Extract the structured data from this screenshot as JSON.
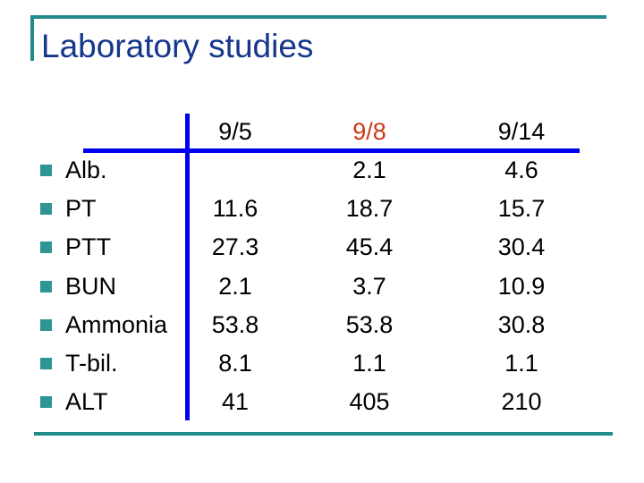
{
  "slide": {
    "title": "Laboratory studies"
  },
  "colors": {
    "title_navy": "#16368C",
    "table_line_blue": "#0000EE",
    "accent_teal": "#228B8B",
    "bullet_teal": "#2E9595",
    "date_highlight_red": "#CC3A16",
    "text_black": "#000000"
  },
  "table": {
    "columns": [
      "9/5",
      "9/8",
      "9/14"
    ],
    "highlight_column_index": 1,
    "rows": [
      {
        "label": "Alb.",
        "values": [
          "",
          "2.1",
          "4.6"
        ]
      },
      {
        "label": "PT",
        "values": [
          "11.6",
          "18.7",
          "15.7"
        ]
      },
      {
        "label": "PTT",
        "values": [
          "27.3",
          "45.4",
          "30.4"
        ]
      },
      {
        "label": "BUN",
        "values": [
          "2.1",
          "3.7",
          "10.9"
        ]
      },
      {
        "label": "Ammonia",
        "values": [
          "53.8",
          "53.8",
          "30.8"
        ]
      },
      {
        "label": "T-bil.",
        "values": [
          "8.1",
          "1.1",
          "1.1"
        ]
      },
      {
        "label": "ALT",
        "values": [
          "41",
          "405",
          "210"
        ]
      }
    ]
  }
}
